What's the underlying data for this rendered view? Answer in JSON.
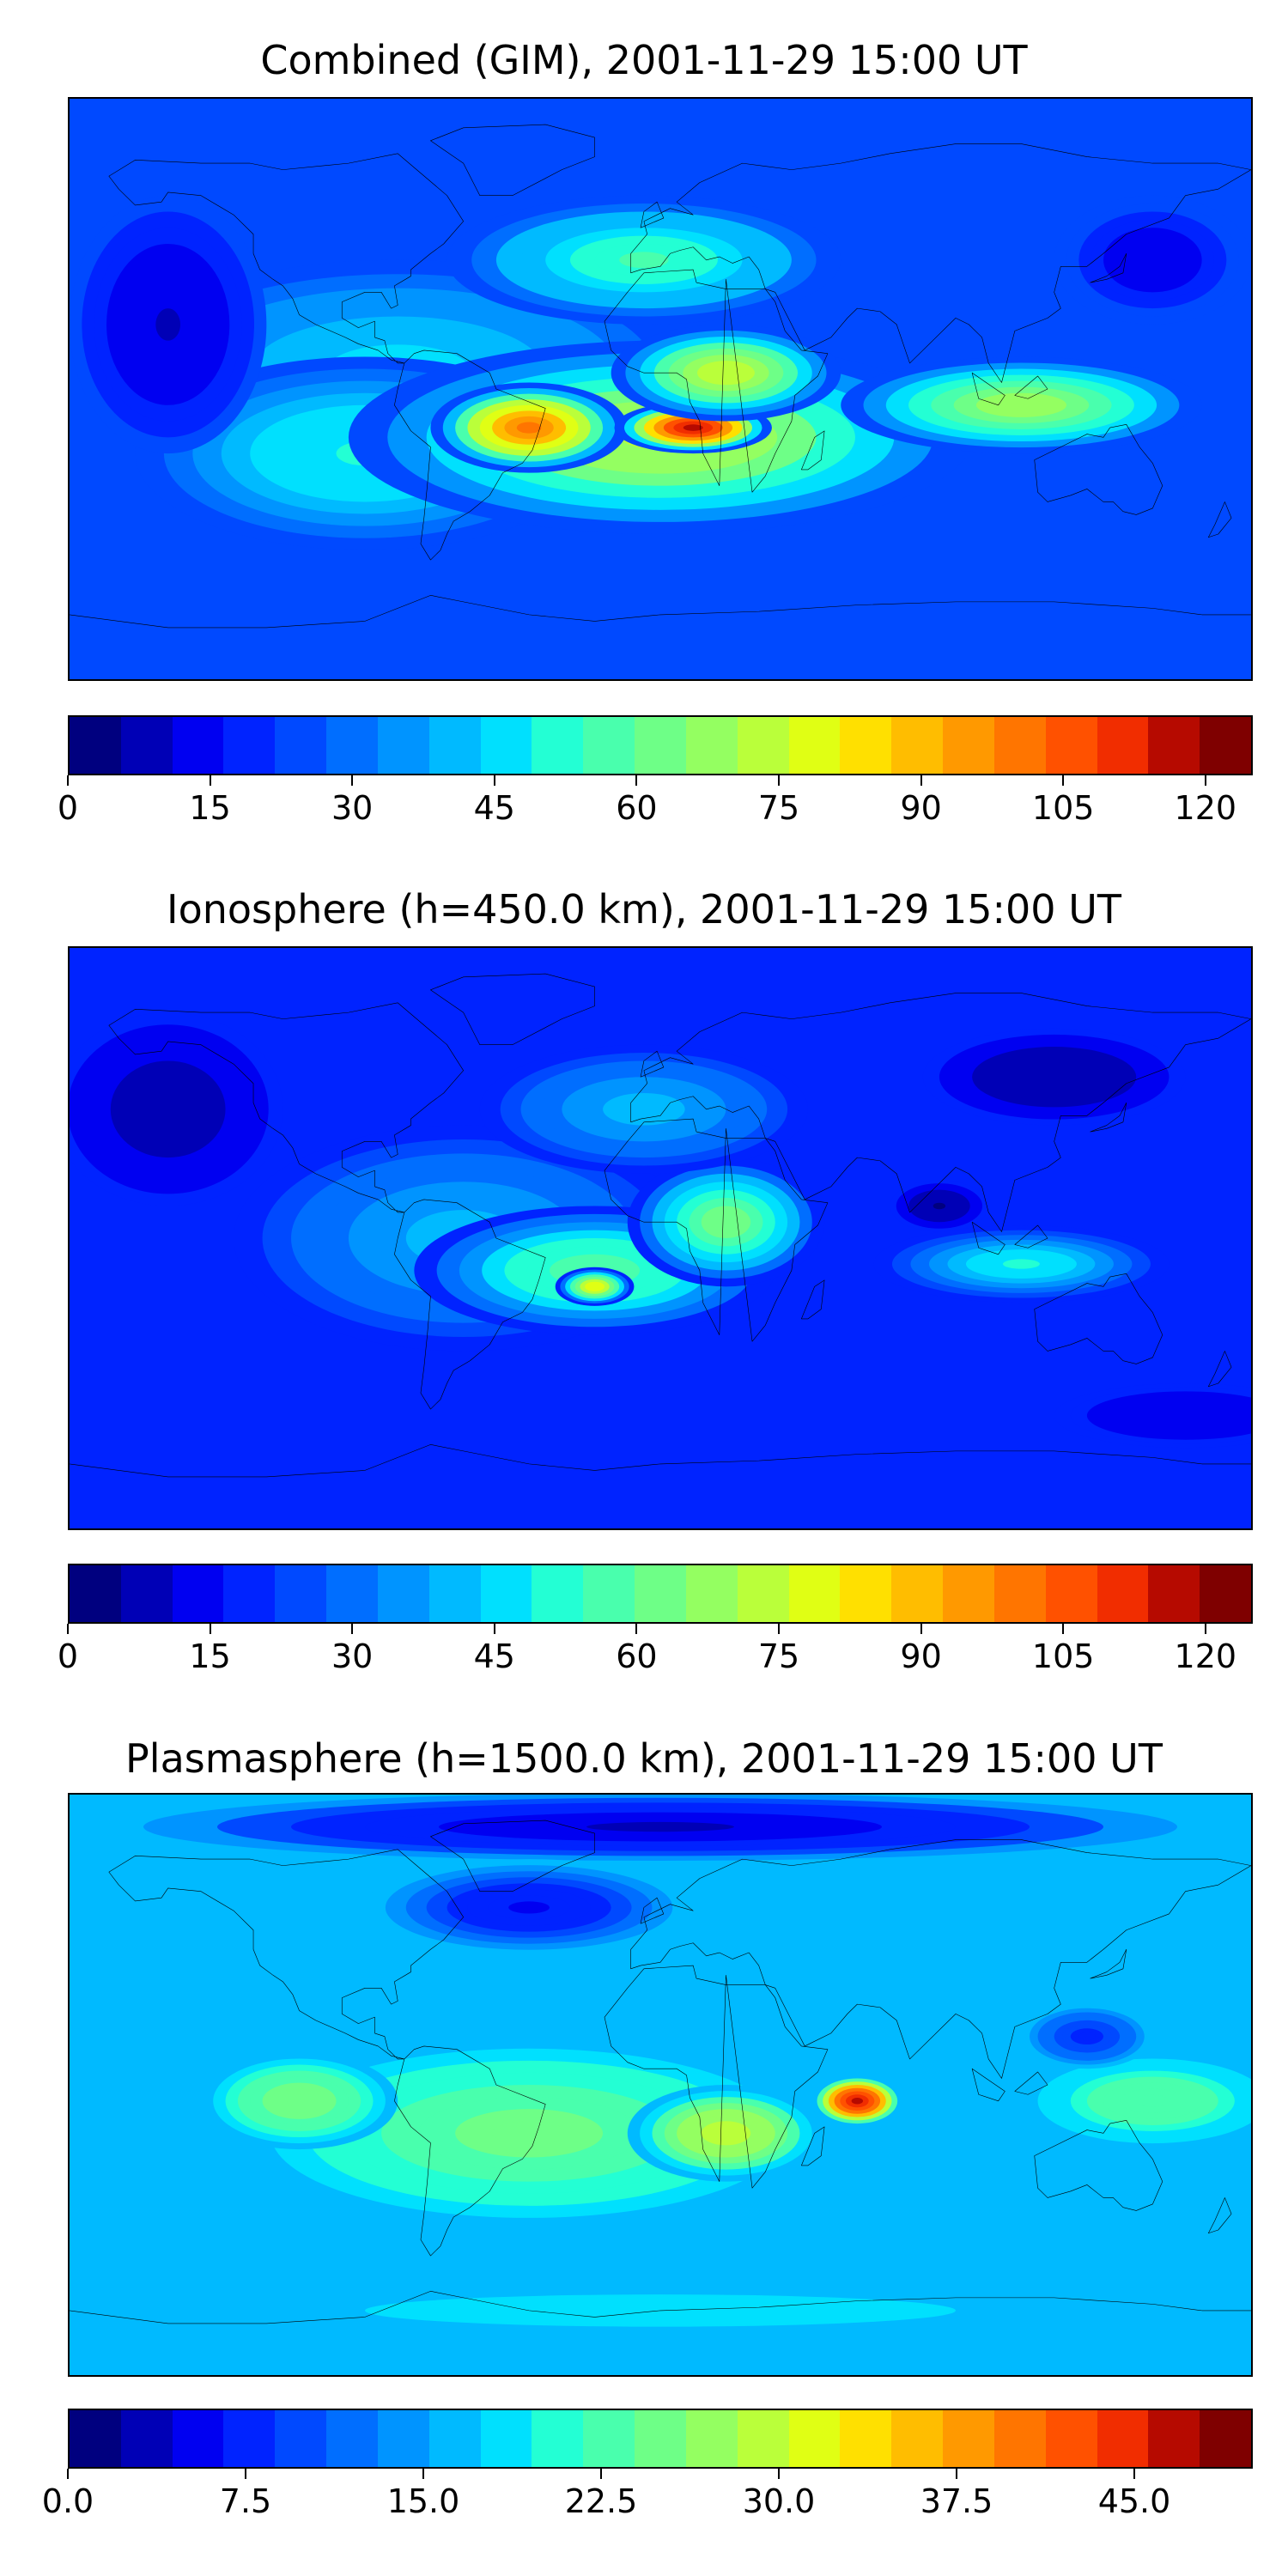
{
  "palette": [
    "#00007f",
    "#0000b6",
    "#0000f1",
    "#0023ff",
    "#0049ff",
    "#006eff",
    "#0094ff",
    "#00baff",
    "#00e0fe",
    "#23ffd4",
    "#49ffad",
    "#6eff87",
    "#94ff61",
    "#baff3a",
    "#e0ff14",
    "#ffe000",
    "#ffbd00",
    "#ff9900",
    "#ff7500",
    "#ff5100",
    "#f12d00",
    "#b60a00",
    "#7f0000"
  ],
  "chart_data": [
    {
      "type": "contour-map",
      "title": "Combined (GIM), 2001-11-29 15:00 UT",
      "colorbar": {
        "min": 0,
        "max": 125,
        "levels": 23,
        "ticks": [
          0,
          15,
          30,
          45,
          60,
          75,
          90,
          105,
          120
        ],
        "tick_labels": [
          "0",
          "15",
          "30",
          "45",
          "60",
          "75",
          "90",
          "105",
          "120"
        ]
      },
      "background_value": 25,
      "features": [
        {
          "lon": -80,
          "lat": 5,
          "value": 45,
          "spread_lon": 90,
          "spread_lat": 35
        },
        {
          "lon": -90,
          "lat": -20,
          "value": 50,
          "spread_lon": 70,
          "spread_lat": 30
        },
        {
          "lon": 0,
          "lat": -15,
          "value": 72,
          "spread_lon": 95,
          "spread_lat": 30
        },
        {
          "lon": -40,
          "lat": -12,
          "value": 100,
          "spread_lon": 30,
          "spread_lat": 14
        },
        {
          "lon": 10,
          "lat": -12,
          "value": 118,
          "spread_lon": 24,
          "spread_lat": 8
        },
        {
          "lon": 20,
          "lat": 5,
          "value": 75,
          "spread_lon": 35,
          "spread_lat": 15
        },
        {
          "lon": 110,
          "lat": -5,
          "value": 70,
          "spread_lon": 55,
          "spread_lat": 15
        },
        {
          "lon": -5,
          "lat": 40,
          "value": 55,
          "spread_lon": 60,
          "spread_lat": 20
        },
        {
          "lon": 150,
          "lat": 40,
          "value": 12,
          "spread_lon": 30,
          "spread_lat": 20
        },
        {
          "lon": -150,
          "lat": 20,
          "value": 10,
          "spread_lon": 30,
          "spread_lat": 40
        }
      ]
    },
    {
      "type": "contour-map",
      "title": "Ionosphere  (h=450.0 km), 2001-11-29 15:00 UT",
      "colorbar": {
        "min": 0,
        "max": 125,
        "levels": 23,
        "ticks": [
          0,
          15,
          30,
          45,
          60,
          75,
          90,
          105,
          120
        ],
        "tick_labels": [
          "0",
          "15",
          "30",
          "45",
          "60",
          "75",
          "90",
          "105",
          "120"
        ]
      },
      "background_value": 18,
      "features": [
        {
          "lon": -60,
          "lat": 0,
          "value": 40,
          "spread_lon": 70,
          "spread_lat": 35
        },
        {
          "lon": -20,
          "lat": -10,
          "value": 60,
          "spread_lon": 55,
          "spread_lat": 20
        },
        {
          "lon": -20,
          "lat": -15,
          "value": 80,
          "spread_lon": 12,
          "spread_lat": 6
        },
        {
          "lon": 20,
          "lat": 5,
          "value": 65,
          "spread_lon": 30,
          "spread_lat": 20
        },
        {
          "lon": 110,
          "lat": -8,
          "value": 50,
          "spread_lon": 45,
          "spread_lat": 12
        },
        {
          "lon": -5,
          "lat": 40,
          "value": 40,
          "spread_lon": 50,
          "spread_lat": 20
        },
        {
          "lon": -150,
          "lat": 40,
          "value": 8,
          "spread_lon": 35,
          "spread_lat": 30
        },
        {
          "lon": 85,
          "lat": 10,
          "value": 5,
          "spread_lon": 15,
          "spread_lat": 8
        },
        {
          "lon": 120,
          "lat": 50,
          "value": 6,
          "spread_lon": 40,
          "spread_lat": 15
        },
        {
          "lon": 160,
          "lat": -55,
          "value": 12,
          "spread_lon": 40,
          "spread_lat": 10
        }
      ]
    },
    {
      "type": "contour-map",
      "title": "Plasmasphere (h=1500.0 km), 2001-11-29 15:00 UT",
      "colorbar": {
        "min": 0,
        "max": 50,
        "levels": 23,
        "ticks": [
          0.0,
          7.5,
          15.0,
          22.5,
          30.0,
          37.5,
          45.0
        ],
        "tick_labels": [
          "0.0",
          "7.5",
          "15.0",
          "22.5",
          "30.0",
          "37.5",
          "45.0"
        ]
      },
      "background_value": 16,
      "features": [
        {
          "lon": -40,
          "lat": -15,
          "value": 25,
          "spread_lon": 90,
          "spread_lat": 30
        },
        {
          "lon": -110,
          "lat": -5,
          "value": 26,
          "spread_lon": 30,
          "spread_lat": 15
        },
        {
          "lon": 20,
          "lat": -15,
          "value": 30,
          "spread_lon": 30,
          "spread_lat": 15
        },
        {
          "lon": 60,
          "lat": -5,
          "value": 47,
          "spread_lon": 14,
          "spread_lat": 8
        },
        {
          "lon": 150,
          "lat": -5,
          "value": 24,
          "spread_lon": 40,
          "spread_lat": 15
        },
        {
          "lon": 0,
          "lat": 80,
          "value": 4,
          "spread_lon": 180,
          "spread_lat": 12
        },
        {
          "lon": -40,
          "lat": 55,
          "value": 6,
          "spread_lon": 50,
          "spread_lat": 15
        },
        {
          "lon": 130,
          "lat": 15,
          "value": 8,
          "spread_lon": 20,
          "spread_lat": 10
        },
        {
          "lon": 0,
          "lat": -70,
          "value": 18,
          "spread_lon": 180,
          "spread_lat": 10
        }
      ]
    }
  ]
}
